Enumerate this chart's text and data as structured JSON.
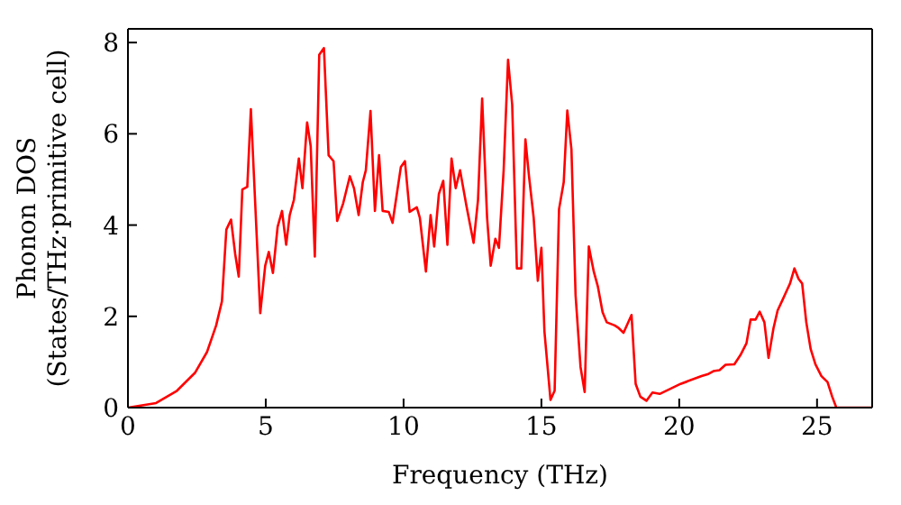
{
  "chart_data": {
    "type": "line",
    "xlabel": "Frequency (THz)",
    "ylabel": "Phonon DOS\n(States/THz·primitive cell)",
    "xlim": [
      0,
      27
    ],
    "ylim": [
      0,
      8.3
    ],
    "xticks": [
      0,
      5,
      10,
      15,
      20,
      25
    ],
    "yticks": [
      0,
      2,
      4,
      6,
      8
    ],
    "marker": "none",
    "line_style": "solid",
    "series": [
      {
        "color": "#ff0000",
        "x": [
          0,
          1.02,
          1.78,
          2.43,
          2.87,
          3.2,
          3.41,
          3.57,
          3.74,
          3.89,
          4.02,
          4.15,
          4.33,
          4.46,
          4.8,
          4.98,
          5.11,
          5.26,
          5.43,
          5.59,
          5.74,
          5.87,
          6.02,
          6.2,
          6.33,
          6.5,
          6.63,
          6.78,
          6.94,
          7.11,
          7.28,
          7.46,
          7.59,
          7.81,
          8.05,
          8.2,
          8.37,
          8.52,
          8.63,
          8.8,
          8.96,
          9.11,
          9.24,
          9.46,
          9.6,
          9.9,
          10.05,
          10.22,
          10.48,
          10.59,
          10.81,
          10.98,
          11.11,
          11.28,
          11.44,
          11.59,
          11.74,
          11.89,
          12.05,
          12.28,
          12.54,
          12.7,
          12.85,
          13.03,
          13.16,
          13.33,
          13.46,
          13.63,
          13.79,
          13.94,
          14.11,
          14.27,
          14.42,
          14.55,
          14.72,
          14.87,
          15.0,
          15.11,
          15.33,
          15.48,
          15.64,
          15.81,
          15.94,
          16.09,
          16.24,
          16.42,
          16.57,
          16.72,
          16.9,
          17.05,
          17.22,
          17.37,
          17.66,
          17.81,
          17.98,
          18.27,
          18.42,
          18.59,
          18.81,
          19.03,
          19.29,
          20.05,
          20.81,
          21.03,
          21.24,
          21.46,
          21.68,
          22.0,
          22.22,
          22.44,
          22.59,
          22.77,
          22.92,
          23.09,
          23.24,
          23.42,
          23.57,
          23.74,
          23.92,
          24.02,
          24.18,
          24.33,
          24.46,
          24.61,
          24.77,
          24.94,
          25.16,
          25.38,
          25.55,
          25.7,
          27
        ],
        "values": [
          0,
          0.1,
          0.37,
          0.76,
          1.22,
          1.8,
          2.33,
          3.9,
          4.12,
          3.37,
          2.87,
          4.78,
          4.84,
          6.54,
          2.07,
          3.11,
          3.41,
          2.95,
          3.96,
          4.31,
          3.57,
          4.22,
          4.55,
          5.46,
          4.81,
          6.25,
          5.73,
          3.31,
          7.73,
          7.88,
          5.53,
          5.4,
          4.09,
          4.48,
          5.07,
          4.81,
          4.22,
          4.94,
          5.2,
          6.5,
          4.31,
          5.53,
          4.31,
          4.29,
          4.05,
          5.27,
          5.4,
          4.29,
          4.39,
          4.16,
          2.98,
          4.22,
          3.53,
          4.68,
          4.97,
          3.57,
          5.46,
          4.81,
          5.2,
          4.42,
          3.61,
          4.55,
          6.77,
          4.16,
          3.11,
          3.7,
          3.5,
          5.2,
          7.62,
          6.64,
          3.05,
          3.05,
          5.88,
          5.07,
          4.16,
          2.78,
          3.5,
          1.67,
          0.17,
          0.37,
          4.35,
          4.94,
          6.51,
          5.66,
          2.46,
          0.89,
          0.34,
          3.53,
          2.98,
          2.65,
          2.09,
          1.87,
          1.8,
          1.74,
          1.64,
          2.03,
          0.52,
          0.24,
          0.15,
          0.33,
          0.3,
          0.52,
          0.69,
          0.73,
          0.8,
          0.82,
          0.94,
          0.95,
          1.15,
          1.41,
          1.93,
          1.93,
          2.1,
          1.87,
          1.09,
          1.74,
          2.13,
          2.35,
          2.59,
          2.72,
          3.05,
          2.82,
          2.72,
          1.87,
          1.28,
          0.95,
          0.69,
          0.56,
          0.24,
          0,
          0
        ]
      }
    ]
  }
}
